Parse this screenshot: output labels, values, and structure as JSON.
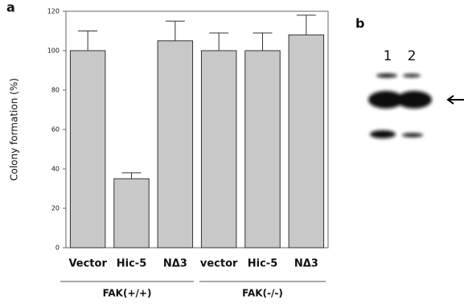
{
  "chart_data": {
    "type": "bar",
    "panel_label": "a",
    "y_label": "Colony formation (%)",
    "categories": [
      "Vector",
      "Hic-5",
      "NΔ3",
      "vector",
      "Hic-5",
      "NΔ3"
    ],
    "values": [
      100,
      35,
      105,
      100,
      100,
      108
    ],
    "errors": [
      10,
      3,
      10,
      9,
      9,
      10
    ],
    "color": "#c8c8c8",
    "ylim": [
      0,
      120
    ],
    "yticks": [
      0,
      20,
      40,
      60,
      80,
      100,
      120
    ],
    "group_labels": [
      "FAK(+/+)",
      "FAK(-/-)"
    ]
  },
  "blot": {
    "panel_label": "b",
    "lanes": [
      "1",
      "2"
    ]
  }
}
